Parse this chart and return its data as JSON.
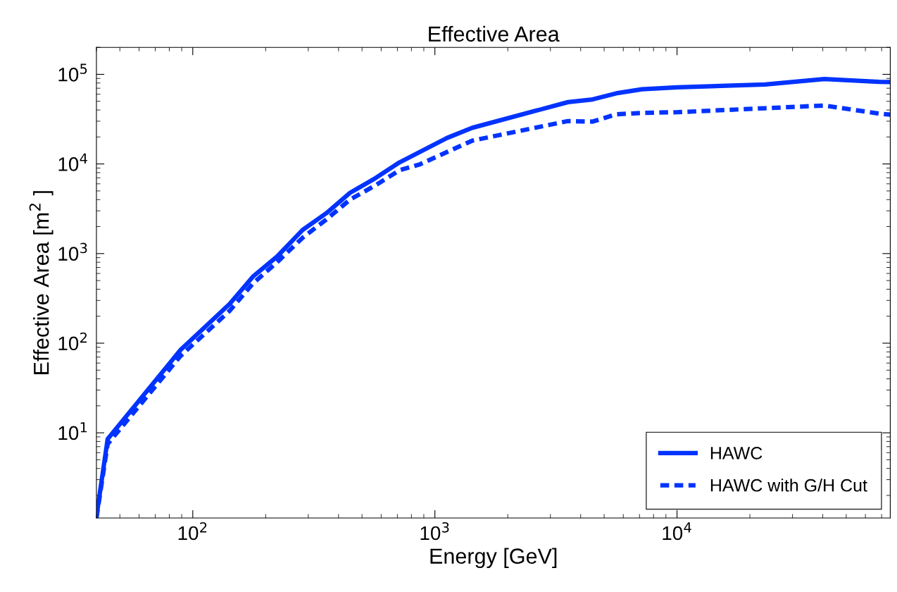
{
  "chart_data": {
    "type": "line",
    "title": "Effective Area",
    "xlabel": "Energy [GeV]",
    "ylabel": "Effective Area [m$^{2}$ ]",
    "log": "xy",
    "xlim": [
      40,
      76000
    ],
    "ylim": [
      1.12,
      200000
    ],
    "xticks": [
      {
        "value": 100,
        "label": "10$^{2}$"
      },
      {
        "value": 1000,
        "label": "10$^{3}$"
      },
      {
        "value": 10000,
        "label": "10$^{4}$"
      }
    ],
    "yticks": [
      {
        "value": 10,
        "label": "10$^{1}$"
      },
      {
        "value": 100,
        "label": "10$^{2}$"
      },
      {
        "value": 1000,
        "label": "10$^{3}$"
      },
      {
        "value": 10000,
        "label": "10$^{4}$"
      },
      {
        "value": 100000,
        "label": "10$^{5}$"
      }
    ],
    "legend": "lower right",
    "grid": false,
    "series": [
      {
        "name": "HAWC",
        "color": "#0033ff",
        "line_style": "solid",
        "x": [
          40,
          44.5,
          89,
          142,
          178,
          223,
          284,
          356,
          446,
          570,
          714,
          1122,
          1426,
          3548,
          4480,
          5610,
          7170,
          10070,
          23100,
          40600,
          68200,
          76000
        ],
        "values": [
          1.16,
          8.5,
          84,
          274,
          560,
          927,
          1830,
          2820,
          4760,
          6980,
          10400,
          19500,
          25300,
          49000,
          52500,
          61400,
          68200,
          71800,
          77100,
          88500,
          82600,
          82000
        ]
      },
      {
        "name": "HAWC with G/H Cut",
        "color": "#0033ff",
        "line_style": "dashed",
        "x": [
          40,
          44.5,
          89,
          142,
          178,
          223,
          284,
          356,
          446,
          570,
          714,
          867,
          1426,
          3548,
          4480,
          5610,
          7170,
          10070,
          23100,
          40600,
          68200,
          76000
        ],
        "values": [
          1.12,
          7.5,
          72,
          230,
          470,
          800,
          1500,
          2400,
          4000,
          5800,
          8500,
          9900,
          18200,
          30100,
          29700,
          35800,
          37100,
          37800,
          41900,
          44900,
          36500,
          35500
        ]
      }
    ]
  }
}
